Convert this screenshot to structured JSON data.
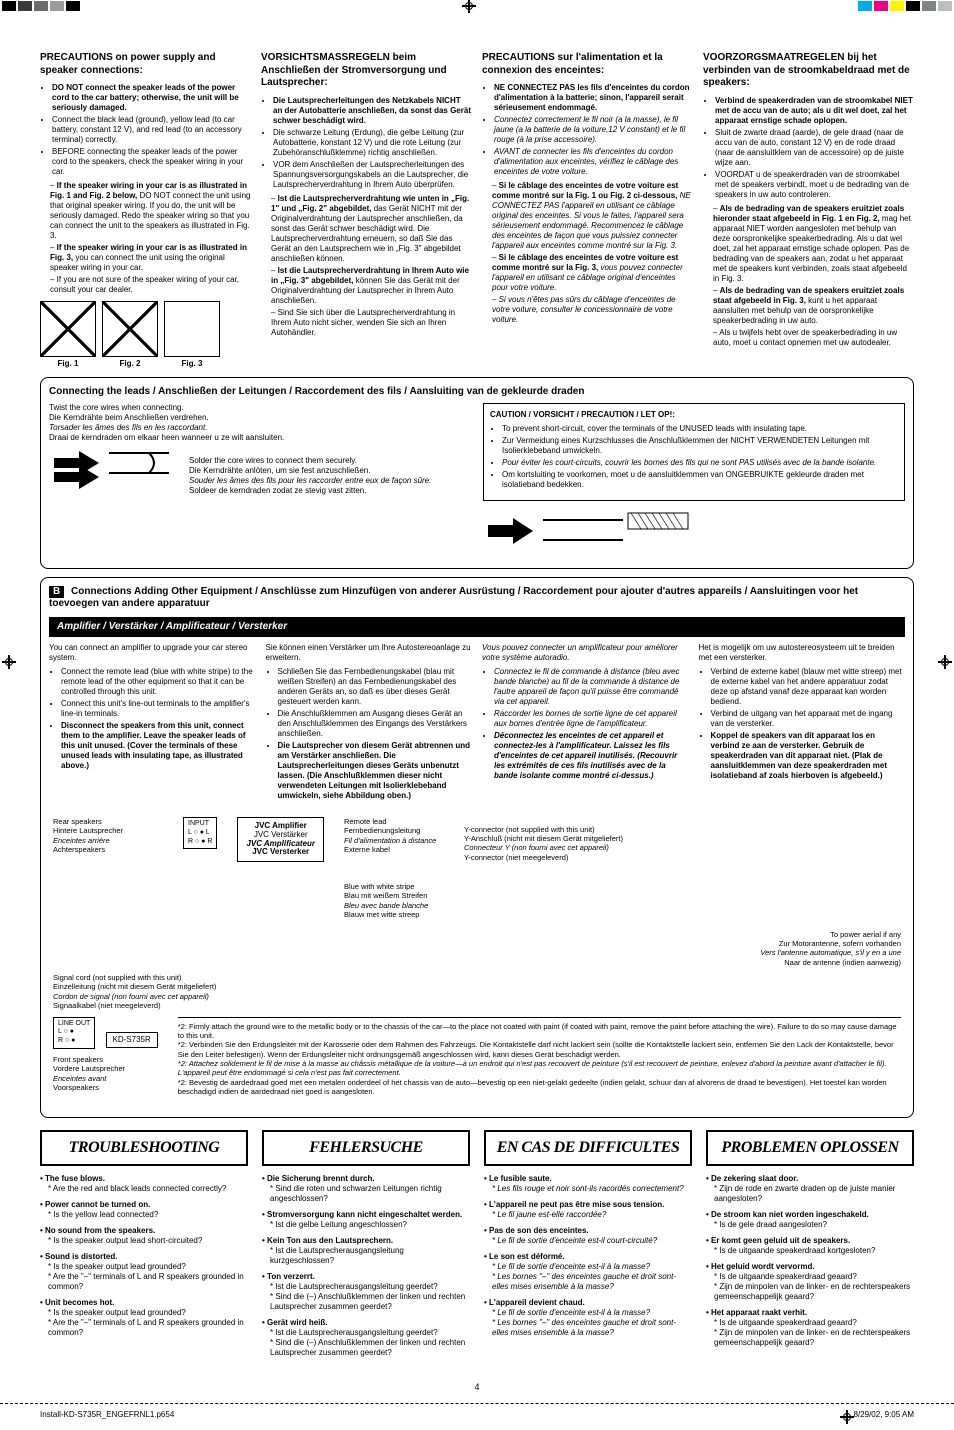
{
  "registration": {
    "cmyk_left": [
      "#000000",
      "#3a3a3a",
      "#6b6b6b",
      "#9a9a9a",
      "#000000"
    ],
    "cmyk_right": [
      "#00aef0",
      "#ec008c",
      "#fff200",
      "#000000",
      "#808285",
      "#bcbec0"
    ]
  },
  "precautions": {
    "en": {
      "title": "PRECAUTIONS on power supply and speaker connections:",
      "items": [
        {
          "text": "DO NOT connect the speaker leads of the power cord to the car battery; otherwise, the unit will be seriously damaged.",
          "bold": true
        },
        {
          "text": "Connect the black lead (ground), yellow lead (to car battery, constant 12 V), and red lead (to an accessory terminal) correctly."
        },
        {
          "text": "BEFORE connecting the speaker leads of the power cord to the speakers, check the speaker wiring in your car."
        }
      ],
      "sub": [
        {
          "bold": "If the speaker wiring in your car is as illustrated in Fig. 1 and Fig. 2 below,",
          "rest": " DO NOT connect the unit using that original speaker wiring. If you do, the unit will be seriously damaged. Redo the speaker wiring so that you can connect the unit to the speakers as illustrated in Fig. 3."
        },
        {
          "bold": "If the speaker wiring in your car is as illustrated in Fig. 3,",
          "rest": " you can connect the unit using the original speaker wiring in your car."
        },
        {
          "bold": "",
          "rest": "If you are not sure of the speaker wiring of your car, consult your car dealer."
        }
      ],
      "figs": [
        "Fig. 1",
        "Fig. 2",
        "Fig. 3"
      ]
    },
    "de": {
      "title": "VORSICHTSMASSREGELN beim Anschließen der Stromversorgung und Lautsprecher:",
      "items": [
        {
          "text": "Die Lautsprecherleitungen des Netzkabels NICHT an der Autobatterie anschließen, da sonst das Gerät schwer beschädigt wird.",
          "bold": true
        },
        {
          "text": "Die schwarze Leitung (Erdung), die gelbe Leitung (zur Autobatterie, konstant 12 V) und die rote Leitung (zur Zubehöranschlußklemme) richtig anschließen."
        },
        {
          "text": "VOR dem Anschließen der Lautsprecherleitungen des Spannungsversorgungskabels an die Lautsprecher, die Lautsprecherverdrahtung in Ihrem Auto überprüfen."
        }
      ],
      "sub": [
        {
          "bold": "Ist die Lautsprecherverdrahtung wie unten in „Fig. 1\" und „Fig. 2\" abgebildet,",
          "rest": " das Gerät NICHT mit der Originalverdrahtung der Lautsprecher anschließen, da sonst das Gerät schwer beschädigt wird. Die Lautsprecherverdrahtung erneuern, so daß Sie das Gerät an den Lautsprechern wie in „Fig. 3\" abgebildet anschließen können."
        },
        {
          "bold": "Ist die Lautsprecherverdrahtung in Ihrem Auto wie in „Fig. 3\" abgebildet,",
          "rest": " können Sie das Gerät mit der Originalverdrahtung der Lautsprecher in Ihrem Auto anschließen."
        },
        {
          "bold": "",
          "rest": "Sind Sie sich über die Lautsprecherverdrahtung in Ihrem Auto nicht sicher, wenden Sie sich an Ihren Autohändler."
        }
      ]
    },
    "fr": {
      "title": "PRECAUTIONS sur l'alimentation et la connexion des enceintes:",
      "items": [
        {
          "text": "NE CONNECTEZ PAS les fils d'enceintes du cordon d'alimentation à la batterie; sinon, l'appareil serait sérieusement endommagé.",
          "bold": true
        },
        {
          "text": "Connectez correctement le fil noir (a la masse), le fil jaune (a la batterie de la voiture,12 V constant) et le fil rouge (à la prise accessoire).",
          "italic": true
        },
        {
          "text": "AVANT de connecter les fils d'enceintes du cordon d'alimentation aux enceintes, vérifiez le câblage des enceintes de votre voiture.",
          "italic": true
        }
      ],
      "sub": [
        {
          "bold": "Si le câblage des enceintes de votre voiture est comme montré sur la Fig. 1 ou Fig. 2 ci-dessous,",
          "rest": " NE CONNECTEZ PAS l'appareil en utilisant ce câblage original des enceintes. Si vous le faites, l'appareil sera sérieusement endommagé. Recommencez le câblage des enceintes de façon que vous puissiez connecter l'appareil aux enceintes comme montré sur la Fig. 3."
        },
        {
          "bold": "Si le câblage des enceintes de votre voiture est comme montré sur la Fig. 3,",
          "rest": " vous pouvez connecter l'appareil en utilisant ce câblage original d'enceintes pour votre voiture."
        },
        {
          "bold": "",
          "rest": "Si vous n'êtes pas sûrs du câblage d'enceintes de votre voiture, consulter le concessionnaire de votre voiture."
        }
      ]
    },
    "nl": {
      "title": "VOORZORGSMAATREGELEN bij het verbinden van de stroomkabeldraad met de speakers:",
      "items": [
        {
          "text": "Verbind de speakerdraden van de stroomkabel NIET met de accu van de auto; als u dit wel doet, zal het apparaat ernstige schade oplopen.",
          "bold": true
        },
        {
          "text": "Sluit de zwarte draad (aarde), de gele draad (naar de accu van de auto, constant 12 V) en de rode draad (naar de aansluitklem van de accessoire) op de juiste wijze aan."
        },
        {
          "text": "VOORDAT u de speakerdraden van de stroomkabel met de speakers verbindt, moet u de bedrading van de speakers in uw auto controleren."
        }
      ],
      "sub": [
        {
          "bold": "Als de bedrading van de speakers eruitziet zoals hieronder staat afgebeeld in Fig. 1 en Fig. 2,",
          "rest": " mag het apparaat NIET worden aangesloten met behulp van deze oorspronkelijke speakerbedrading. Als u dat wel doet, zal het apparaat ernstige schade oplopen. Pas de bedrading van de speakers aan, zodat u het apparaat met de speakers kunt verbinden, zoals staat afgebeeld in Fig. 3."
        },
        {
          "bold": "Als de bedrading van de speakers eruitziet zoals staat afgebeeld in Fig. 3,",
          "rest": " kunt u het apparaat aansluiten met behulp van de oorspronkelijke speakerbedrading in uw auto."
        },
        {
          "bold": "",
          "rest": "Als u twijfels hebt over de speakerbedrading in uw auto, moet u contact opnemen met uw autodealer."
        }
      ]
    }
  },
  "connecting": {
    "header": "Connecting the leads / Anschließen der Leitungen / Raccordement des fils / Aansluiting van de gekleurde draden",
    "twist": [
      "Twist the core wires when connecting.",
      "Die Kerndrähte beim Anschließen verdrehen.",
      "Torsader les âmes des fils en les raccordant.",
      "Draai de kerndraden om elkaar heen wanneer u ze wilt aansluiten."
    ],
    "solder": [
      "Solder the core wires to connect them securely.",
      "Die Kerndrähte anlöten, um sie fest anzuschließen.",
      "Souder les âmes des fils pour les raccorder entre eux de façon sûre.",
      "Soldeer de kerndraden zodat ze stevig vast zitten."
    ],
    "caution_title": "CAUTION / VORSICHT / PRECAUTION / LET OP!:",
    "caution_items": [
      "To prevent short-circuit, cover the terminals of the UNUSED leads with insulating tape.",
      "Zur Vermeidung eines Kurzschlusses die Anschlußklemmen der NICHT VERWENDETEN Leitungen mit Isolierklebeband umwickeln.",
      "Pour éviter les court-circuits, couvrir les bornes des fils qui ne sont PAS utilisés avec de la bande isolante.",
      "Om kortsluiting te voorkomen, moet u de aansluitklemmen van ONGEBRUIKTE gekleurde draden met isolatieband bedekken."
    ]
  },
  "section_b": {
    "header": "Connections Adding Other Equipment / Anschlüsse zum Hinzufügen von anderer Ausrüstung / Raccordement pour ajouter d'autres appareils / Aansluitingen voor het toevoegen van andere apparatuur",
    "sub": "Amplifier / Verstärker / Amplificateur / Versterker",
    "en": [
      "You can connect an amplifier to upgrade your car stereo system.",
      "Connect the remote lead (blue with white stripe) to the remote lead of the other equipment so that it can be controlled through this unit.",
      "Connect this unit's line-out terminals to the amplifier's line-in terminals.",
      "Disconnect the speakers from this unit, connect them to the amplifier. Leave the speaker leads of this unit unused. (Cover the terminals of these unused leads with insulating tape, as illustrated above.)"
    ],
    "de": [
      "Sie können einen Verstärker um Ihre Autostereoanlage zu erweitern.",
      "Schließen Sie das Fernbedienungskabel (blau mit weißen Streifen) an das Fernbedienungskabel des anderen Geräts an, so daß es über dieses Gerät gesteuert werden kann.",
      "Die Anschlußklemmen am Ausgang dieses Gerät an den Anschlußklemmen des Eingangs des Verstärkers anschließen.",
      "Die Lautsprecher von diesem Gerät abtrennen und am Verstärker anschließen. Die Lautsprecherleitungen dieses Geräts unbenutzt lassen. (Die Anschlußklemmen dieser nicht verwendeten Leitungen mit Isolierklebeband umwickeln, siehe Abbildung oben.)"
    ],
    "fr": [
      "Vous pouvez connecter un amplificateur pour améliorer votre système autoradio.",
      "Connectez le fil de commande à distance (bleu avec bande blanche) au fil de la commande à distance de l'autre appareil de façon qu'il puisse être commandé via cet appareil.",
      "Raccorder les bornes de sortie ligne de cet appareil aux bornes d'entrée ligne de l'amplificateur.",
      "Déconnectez les enceintes de cet appareil et connectez-les à l'amplificateur. Laissez les fils d'enceintes de cet appareil inutilisés. (Recouvrir les extrémités de ces fils inutilisés avec de la bande isolante comme montré ci-dessus.)"
    ],
    "nl": [
      "Het is mogelijk om uw autostereosysteem uit te breiden met een versterker.",
      "Verbind de externe kabel (blauw met witte streep) met de externe kabel van het andere apparatuur zodat deze op afstand vanaf deze apparaat kan worden bediend.",
      "Verbind de uitgang van het apparaat met de ingang van de versterker.",
      "Koppel de speakers van dit apparaat los en verbind ze aan de versterker. Gebruik de speakerdraden van dit apparaat niet. (Plak de aansluitklemmen van deze speakerdraden met isolatieband af zoals hierboven is afgebeeld.)"
    ],
    "diagram": {
      "rear_speakers": [
        "Rear speakers",
        "Hintere Lautsprecher",
        "Enceintes arrière",
        "Achterspeakers"
      ],
      "front_speakers": [
        "Front speakers",
        "Vordere Lautsprecher",
        "Enceintes avant",
        "Voorspeakers"
      ],
      "amp": [
        "JVC Amplifier",
        "JVC Verstärker",
        "JVC Amplificateur",
        "JVC Versterker"
      ],
      "signal": [
        "Signal cord (not supplied with this unit)",
        "Einzelleitung (nicht mit diesem Gerät mitgeliefert)",
        "Cordon de signal (non fourni avec cet appareil)",
        "Signaalkabel (niet meegeleverd)"
      ],
      "remote": [
        "Remote lead",
        "Fernbedienungsleitung",
        "Fil d'alimentation à distance",
        "Externe kabel"
      ],
      "blue": [
        "Blue with white stripe",
        "Blau mit weißem Streifen",
        "Bleu avec bande blanche",
        "Blauw met witte streep"
      ],
      "yconn": [
        "Y-connector (not supplied with this unit)",
        "Y-Anschluß (nicht mit diesem Gerät mitgeliefert)",
        "Connecteur Y (non fourni avec cet appareil)",
        "Y-connector (niet meegeleverd)"
      ],
      "aerial": [
        "To power aerial if any",
        "Zur Motorantenne, sofern vorhanden",
        "Vers l'antenne automatique, s'il y en a une",
        "Naar de antenne (indien aanwezig)"
      ],
      "model": "KD-S735R",
      "input": "INPUT",
      "lineout": "LINE OUT",
      "lr": [
        "L",
        "R"
      ]
    },
    "note2": [
      "*2: Firmly attach the ground wire to the metallic body or to the chassis of the car—to the place not coated with paint (if coated with paint, remove the paint before attaching the wire). Failure to do so may cause damage to this unit.",
      "*2: Verbinden Sie den Erdungsleiter mit der Karosserie oder dem Rahmen des Fahrzeugs. Die Kontaktstelle darf nicht lackiert sein (sollte die Kontaktstelle lackiert sein, entfernen Sie den Lack der Kontaktstelle, bevor Sie den Leiter befestigen). Wenn der Erdungsleiter nicht ordnungsgemäß angeschlossen wird, kann dieses Gerät beschädigt werden.",
      "*2: Attachez solidement le fil de mise à la masse au châssis métallique de la voiture—à un endroit qui n'est pas recouvert de peinture (s'il est recouvert de peinture, enlevez d'abord la peinture avant d'attacher le fil). L'appareil peut être endommagé si cela n'est pas fait correctement.",
      "*2: Bevestig de aardedraad goed met een metalen onderdeel of het chassis van de auto—bevestig op een niet-gelakt gedeelte (indien gelakt, schuur dan af alvorens de draad te bevestigen). Het toestel kan worden beschadigd indien de aardedraad niet goed is aangesloten."
    ]
  },
  "troubleshooting": {
    "en": {
      "title": "TROUBLESHOOTING",
      "items": [
        {
          "q": "• The fuse blows.",
          "a": "* Are the red and black leads connected correctly?"
        },
        {
          "q": "• Power cannot be turned on.",
          "a": "* Is the yellow lead connected?"
        },
        {
          "q": "• No sound from the speakers.",
          "a": "* Is the speaker output lead short-circuited?"
        },
        {
          "q": "• Sound is distorted.",
          "a": "* Is the speaker output lead grounded?\n* Are the \"–\" terminals of L and R speakers grounded in common?"
        },
        {
          "q": "• Unit becomes hot.",
          "a": "* Is the speaker output lead grounded?\n* Are the \"–\" terminals of L and R speakers grounded in common?"
        }
      ]
    },
    "de": {
      "title": "FEHLERSUCHE",
      "items": [
        {
          "q": "• Die Sicherung brennt durch.",
          "a": "* Sind die roten und schwarzen Leitungen richtig angeschlossen?"
        },
        {
          "q": "• Stromversorgung kann nicht eingeschaltet werden.",
          "a": "* Ist die gelbe Leitung angeschlossen?"
        },
        {
          "q": "• Kein Ton aus den Lautsprechern.",
          "a": "* Ist die Lautsprecherausgangsleitung kurzgeschlossen?"
        },
        {
          "q": "• Ton verzerrt.",
          "a": "* Ist die Lautsprecherausgangsleitung geerdet?\n* Sind die (–) Anschlußklemmen der linken und rechten Lautsprecher zusammen geerdet?"
        },
        {
          "q": "• Gerät wird heiß.",
          "a": "* Ist die Lautsprecherausgangsleitung geerdet?\n* Sind die (–) Anschlußklemmen der linken und rechten Lautsprecher zusammen geerdet?"
        }
      ]
    },
    "fr": {
      "title": "EN CAS DE DIFFICULTES",
      "items": [
        {
          "q": "• Le fusible saute.",
          "a": "* Les fils rouge et noir sont-ils racordés correctement?"
        },
        {
          "q": "• L'appareil ne peut pas être mise sous tension.",
          "a": "* Le fil jaune est-elle raccordée?"
        },
        {
          "q": "• Pas de son des enceintes.",
          "a": "* Le fil de sortie d'enceinte est-il court-circuité?"
        },
        {
          "q": "• Le son est déformé.",
          "a": "* Le fil de sortie d'enceinte est-il à la masse?\n* Les bornes \"–\" des enceintes gauche et droit sont-elles mises ensemble à la masse?"
        },
        {
          "q": "• L'appareil devient chaud.",
          "a": "* Le fil de sortie d'enceinte est-il à la masse?\n* Les bornes \"–\" des enceintes gauche et droit sont-elles mises ensemble à la masse?"
        }
      ]
    },
    "nl": {
      "title": "PROBLEMEN OPLOSSEN",
      "items": [
        {
          "q": "• De zekering slaat door.",
          "a": "* Zijn de rode en zwarte draden op de juiste manier aangesloten?"
        },
        {
          "q": "• De stroom kan niet worden ingeschakeld.",
          "a": "* Is de gele draad aangesloten?"
        },
        {
          "q": "• Er komt geen geluid uit de speakers.",
          "a": "* Is de uitgaande speakerdraad kortgesloten?"
        },
        {
          "q": "• Het geluid wordt vervormd.",
          "a": "* Is de uitgaande speakerdraad geaard?\n* Zijn de minpolen van de linker- en de rechterspeakers gemeenschappelijk geaard?"
        },
        {
          "q": "• Het apparaat raakt verhit.",
          "a": "* Is de uitgaande speakerdraad geaard?\n* Zijn de minpolen van de linker- en de rechterspeakers gemeenschappelijk geaard?"
        }
      ]
    }
  },
  "page_number": "4",
  "file_info": {
    "path": "Install-KD-S735R_ENGEFRNL1.p65",
    "page": "4",
    "date": "8/29/02, 9:05 AM"
  }
}
